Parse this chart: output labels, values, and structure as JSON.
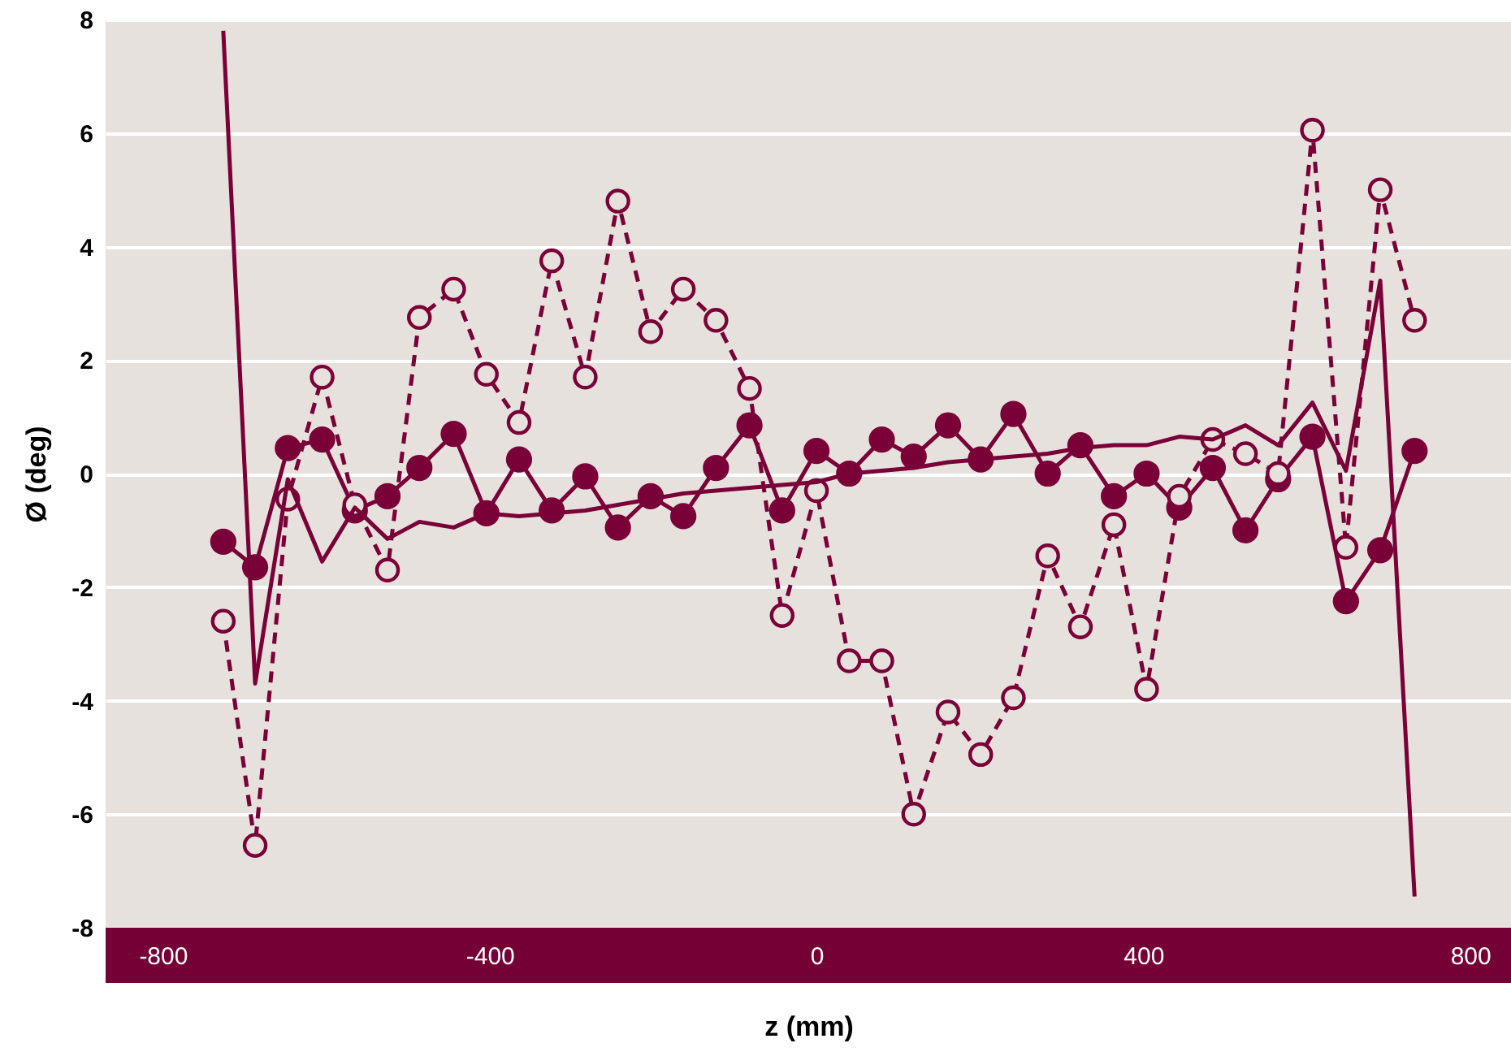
{
  "chart_data": {
    "type": "line",
    "xlabel": "z (mm)",
    "ylabel": "Ø (deg)",
    "x": [
      -726,
      -687,
      -647,
      -605,
      -565,
      -525,
      -486,
      -444,
      -404,
      -364,
      -324,
      -283,
      -243,
      -203,
      -163,
      -123,
      -82,
      -42,
      0,
      40,
      80,
      119,
      161,
      201,
      241,
      283,
      323,
      364,
      404,
      444,
      485,
      525,
      565,
      607,
      648,
      690,
      732
    ],
    "series": [
      {
        "color": "#7a0038",
        "marker": "circle",
        "line_style": "solid",
        "values": [
          -1.2,
          -1.65,
          0.45,
          0.6,
          -0.65,
          -0.4,
          0.1,
          0.7,
          -0.7,
          0.25,
          -0.65,
          -0.05,
          -0.95,
          -0.4,
          -0.75,
          0.1,
          0.85,
          -0.65,
          0.4,
          0.0,
          0.6,
          0.3,
          0.85,
          0.25,
          1.05,
          0.0,
          0.5,
          -0.4,
          0.0,
          -0.6,
          0.1,
          -1.0,
          -0.1,
          0.65,
          -2.25,
          -1.35,
          0.4
        ]
      },
      {
        "color": "#7a0038",
        "marker": "circle",
        "line_style": "dashed",
        "values": [
          -2.6,
          -6.55,
          -0.45,
          1.7,
          -0.55,
          -1.7,
          2.75,
          3.25,
          1.75,
          0.9,
          3.75,
          1.7,
          4.8,
          2.5,
          3.25,
          2.7,
          1.5,
          -2.5,
          -0.3,
          -3.3,
          -3.3,
          -6.0,
          -4.2,
          -4.95,
          -3.95,
          -1.45,
          -2.7,
          -0.9,
          -3.8,
          -0.4,
          0.6,
          0.35,
          0.0,
          6.05,
          -1.3,
          5.0,
          2.7
        ]
      },
      {
        "color": "#7a0038",
        "marker": "none",
        "line_style": "solid",
        "values": [
          7.8,
          -3.7,
          -0.1,
          -1.55,
          -0.6,
          -1.15,
          -0.85,
          -0.95,
          -0.7,
          -0.75,
          -0.7,
          -0.65,
          -0.55,
          -0.45,
          -0.35,
          -0.3,
          -0.25,
          -0.2,
          -0.15,
          0.0,
          0.05,
          0.1,
          0.2,
          0.25,
          0.3,
          0.35,
          0.45,
          0.5,
          0.5,
          0.65,
          0.6,
          0.85,
          0.5,
          1.25,
          0.05,
          3.4,
          -7.45
        ]
      }
    ],
    "xlim": [
      -870,
      850
    ],
    "xticks": [
      -800,
      -400,
      0,
      400,
      800
    ],
    "ylim": [
      -8,
      8
    ],
    "yticks": [
      -8,
      -6,
      -4,
      -2,
      0,
      2,
      4,
      6,
      8
    ],
    "grid": "y"
  }
}
